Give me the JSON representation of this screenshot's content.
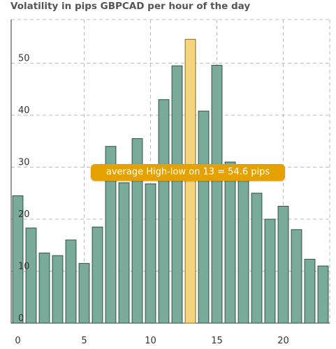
{
  "chart_data": {
    "type": "bar",
    "title": "Volatility in pips GBPCAD per hour of the day",
    "categories": [
      0,
      1,
      2,
      3,
      4,
      5,
      6,
      7,
      8,
      9,
      10,
      11,
      12,
      13,
      14,
      15,
      16,
      17,
      18,
      19,
      20,
      21,
      22,
      23
    ],
    "values": [
      24.5,
      18.3,
      13.5,
      13.0,
      16.0,
      11.5,
      18.5,
      34.0,
      27.0,
      35.5,
      26.8,
      43.0,
      49.5,
      54.6,
      40.8,
      49.6,
      31.0,
      28.0,
      25.0,
      20.0,
      22.5,
      18.0,
      12.3,
      11.0
    ],
    "highlight_index": 13,
    "xticks": [
      0,
      5,
      10,
      15,
      20
    ],
    "yticks": [
      0,
      10,
      20,
      30,
      40,
      50
    ],
    "xlim": [
      -0.5,
      23.5
    ],
    "ylim": [
      0,
      58.4
    ],
    "grid": true,
    "colors": {
      "bar": "#7aaa9a",
      "bar_stroke": "#2e5248",
      "highlight": "#f4d47c",
      "highlight_stroke": "#8a6a1e",
      "grid": "#bbbbbb",
      "tooltip": "#e4a100"
    },
    "tooltip": "average High-low on 13 = 54.6 pips"
  }
}
